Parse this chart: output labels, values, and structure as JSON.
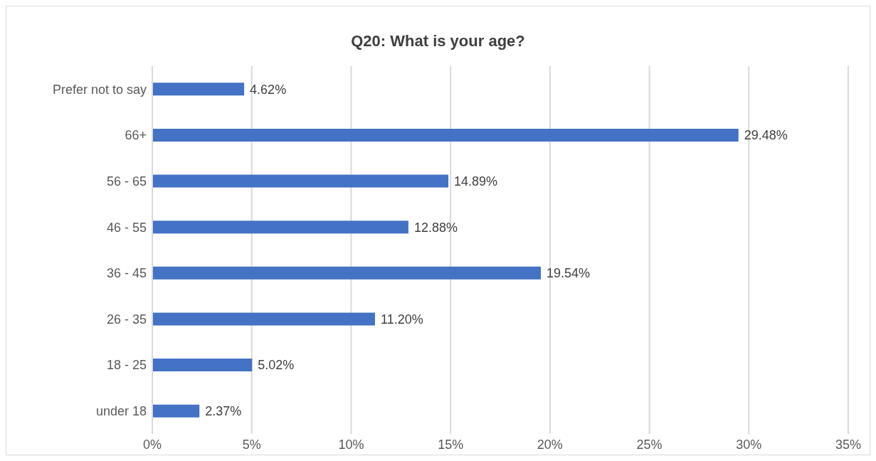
{
  "chart_data": {
    "type": "bar",
    "orientation": "horizontal",
    "title": "Q20: What is your age?",
    "categories": [
      "Prefer not to say",
      "66+",
      "56 - 65",
      "46 - 55",
      "36 - 45",
      "26 - 35",
      "18 - 25",
      "under 18"
    ],
    "values": [
      4.62,
      29.48,
      14.89,
      12.88,
      19.54,
      11.2,
      5.02,
      2.37
    ],
    "value_labels": [
      "4.62%",
      "29.48%",
      "14.89%",
      "12.88%",
      "19.54%",
      "11.20%",
      "5.02%",
      "2.37%"
    ],
    "color": "#4472c4",
    "xlim": [
      0,
      35
    ],
    "xticks": [
      {
        "value": 0,
        "label": "0%"
      },
      {
        "value": 5,
        "label": "5%"
      },
      {
        "value": 10,
        "label": "10%"
      },
      {
        "value": 15,
        "label": "15%"
      },
      {
        "value": 20,
        "label": "20%"
      },
      {
        "value": 25,
        "label": "25%"
      },
      {
        "value": 30,
        "label": "30%"
      },
      {
        "value": 35,
        "label": "35%"
      }
    ],
    "grid": "x"
  }
}
